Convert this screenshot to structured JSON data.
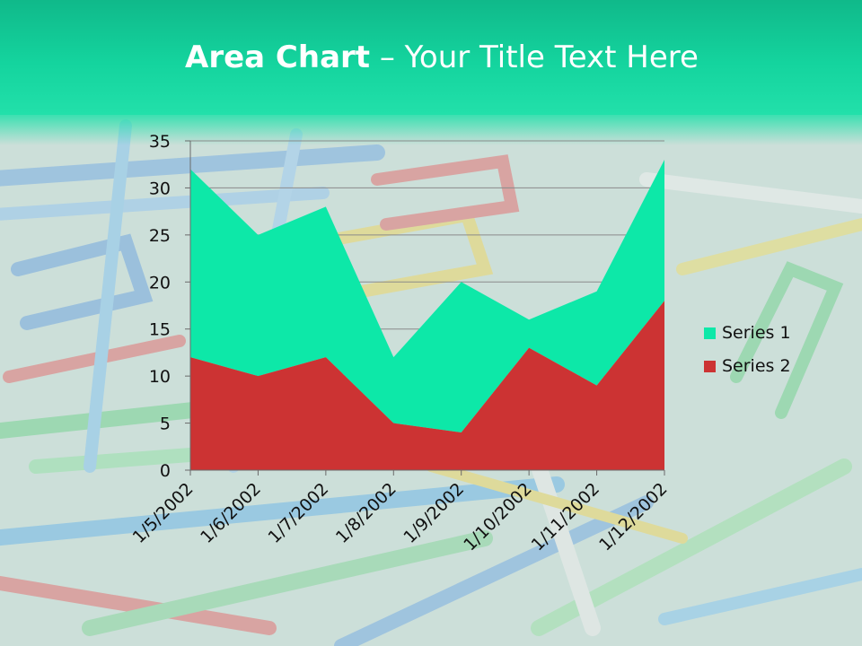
{
  "slide": {
    "title_bold": "Area Chart",
    "title_rest": "– Your Title Text Here"
  },
  "colors": {
    "series1": "#0de8a8",
    "series2": "#cc3333",
    "title_band": "#14d49e",
    "gridline": "#8a8a8a"
  },
  "chart_data": {
    "type": "area",
    "stacked": true,
    "categories": [
      "1/5/2002",
      "1/6/2002",
      "1/7/2002",
      "1/8/2002",
      "1/9/2002",
      "1/10/2002",
      "1/11/2002",
      "1/12/2002"
    ],
    "series": [
      {
        "name": "Series 1",
        "values": [
          20,
          15,
          16,
          7,
          16,
          3,
          10,
          15
        ]
      },
      {
        "name": "Series 2",
        "values": [
          12,
          10,
          12,
          5,
          4,
          13,
          9,
          18
        ]
      }
    ],
    "totals": [
      32,
      25,
      28,
      12,
      20,
      16,
      19,
      33
    ],
    "ylim": [
      0,
      35
    ],
    "yticks": [
      0,
      5,
      10,
      15,
      20,
      25,
      30,
      35
    ],
    "title": "",
    "xlabel": "",
    "ylabel": "",
    "grid": true,
    "legend_position": "right"
  }
}
